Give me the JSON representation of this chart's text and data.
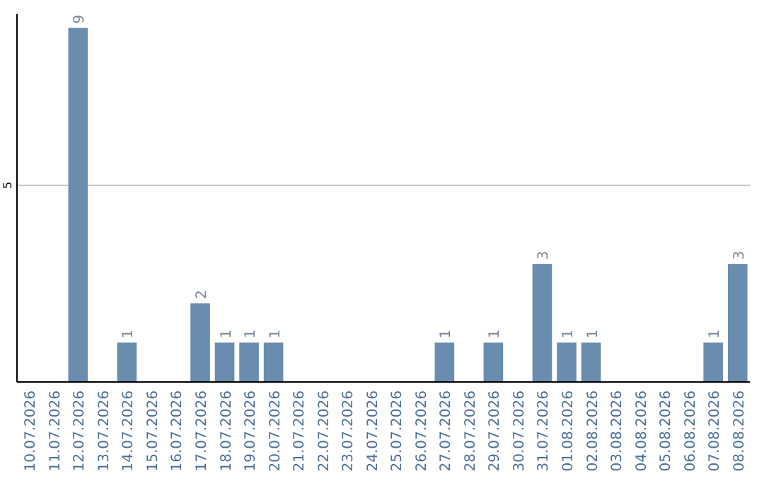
{
  "chart_data": {
    "type": "bar",
    "categories": [
      "10.07.2026",
      "11.07.2026",
      "12.07.2026",
      "13.07.2026",
      "14.07.2026",
      "15.07.2026",
      "16.07.2026",
      "17.07.2026",
      "18.07.2026",
      "19.07.2026",
      "20.07.2026",
      "21.07.2026",
      "22.07.2026",
      "23.07.2026",
      "24.07.2026",
      "25.07.2026",
      "26.07.2026",
      "27.07.2026",
      "28.07.2026",
      "29.07.2026",
      "30.07.2026",
      "31.07.2026",
      "01.08.2026",
      "02.08.2026",
      "03.08.2026",
      "04.08.2026",
      "05.08.2026",
      "06.08.2026",
      "07.08.2026",
      "08.08.2026"
    ],
    "values": [
      0,
      0,
      9,
      0,
      1,
      0,
      0,
      2,
      1,
      1,
      1,
      0,
      0,
      0,
      0,
      0,
      0,
      1,
      0,
      1,
      0,
      3,
      1,
      1,
      0,
      0,
      0,
      0,
      1,
      3
    ],
    "value_labels": [
      null,
      null,
      "9",
      null,
      "1",
      null,
      null,
      "2",
      "1",
      "1",
      "1",
      null,
      null,
      null,
      null,
      null,
      null,
      "1",
      null,
      "1",
      null,
      "3",
      "1",
      "1",
      null,
      null,
      null,
      null,
      "1",
      "3"
    ],
    "color": "#6a8caf",
    "ylim": [
      0,
      9.35
    ],
    "yticks": [
      5
    ],
    "grid": "y"
  }
}
